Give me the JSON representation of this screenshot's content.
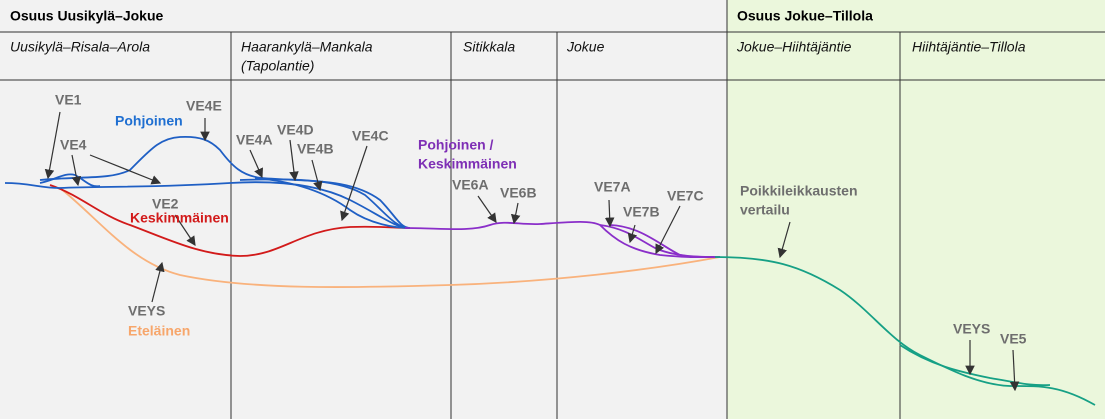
{
  "header": {
    "left_title": "Osuus Uusikylä–Jokue",
    "right_title": "Osuus Jokue–Tillola"
  },
  "subsections": [
    [
      "Uusikylä–Risala–Arola"
    ],
    [
      "Haarankylä–Mankala",
      "(Tapolantie)"
    ],
    [
      "Sitikkala"
    ],
    [
      "Jokue"
    ],
    [
      "Jokue–Hiihtäjäntie"
    ],
    [
      "Hiihtäjäntie–Tillola"
    ]
  ],
  "labels": {
    "ve1": "VE1",
    "ve4": "VE4",
    "pohjoinen": "Pohjoinen",
    "ve4e": "VE4E",
    "ve4a": "VE4A",
    "ve4d": "VE4D",
    "ve4b": "VE4B",
    "ve4c": "VE4C",
    "pohjoinen_keskimmainen": [
      "Pohjoinen /",
      "Keskimmäinen"
    ],
    "ve6a": "VE6A",
    "ve6b": "VE6B",
    "ve7a": "VE7A",
    "ve7b": "VE7B",
    "ve7c": "VE7C",
    "poikkileikkausten": [
      "Poikkileikkausten",
      "vertailu"
    ],
    "ve2": "VE2",
    "keskimmainen": "Keskimmäinen",
    "veys1": "VEYS",
    "etelainen": "Eteläinen",
    "veys2": "VEYS",
    "ve5": "VE5"
  }
}
